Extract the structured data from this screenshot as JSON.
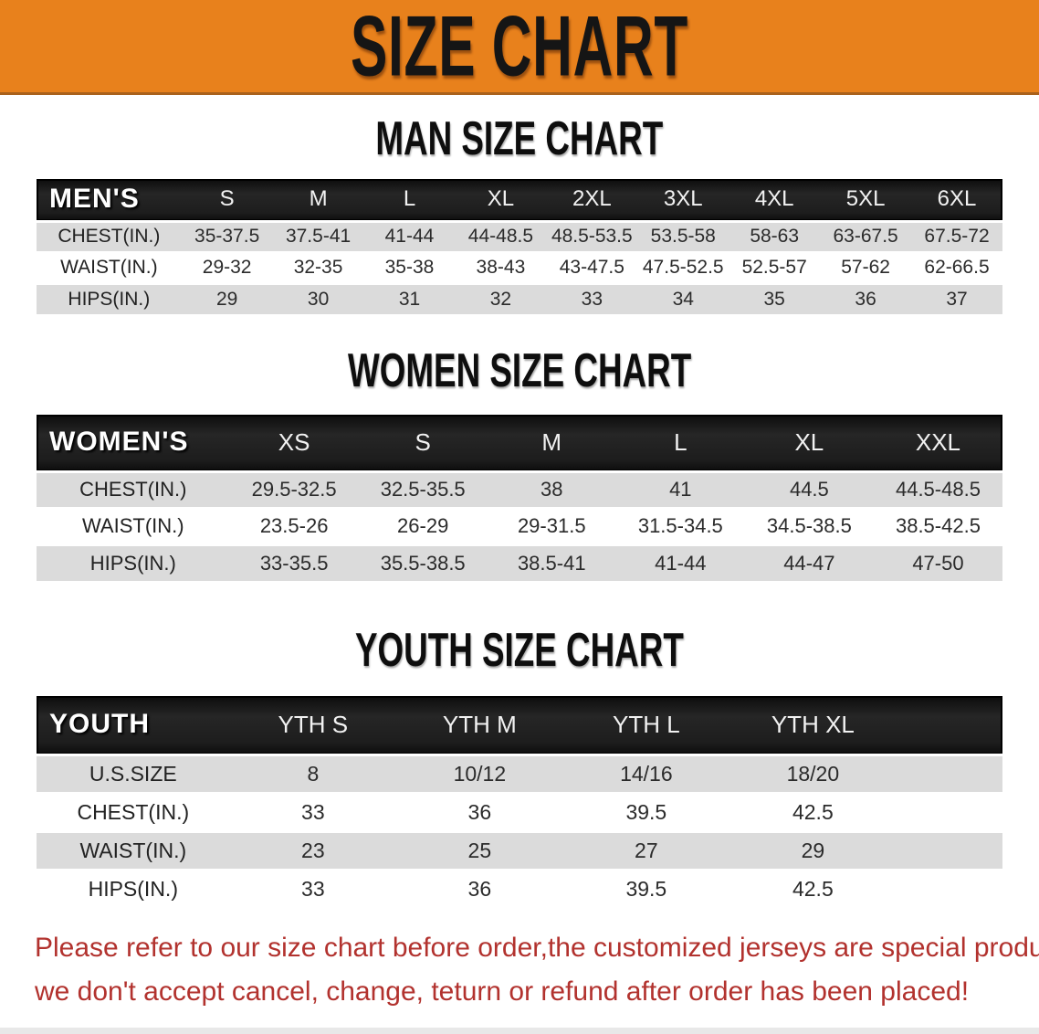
{
  "banner": {
    "title": "SIZE CHART"
  },
  "colors": {
    "banner_bg": "#E8811C",
    "banner_edge": "#A9611B",
    "header_bg": "#191919",
    "row_alt": "#DBDBDB",
    "footer_text": "#B2322E"
  },
  "sections": [
    {
      "kind": "men",
      "heading": "MAN SIZE CHART",
      "header_label": "MEN'S",
      "columns": [
        "S",
        "M",
        "L",
        "XL",
        "2XL",
        "3XL",
        "4XL",
        "5XL",
        "6XL"
      ],
      "rows": [
        {
          "label": "CHEST(IN.)",
          "values": [
            "35-37.5",
            "37.5-41",
            "41-44",
            "44-48.5",
            "48.5-53.5",
            "53.5-58",
            "58-63",
            "63-67.5",
            "67.5-72"
          ]
        },
        {
          "label": "WAIST(IN.)",
          "values": [
            "29-32",
            "32-35",
            "35-38",
            "38-43",
            "43-47.5",
            "47.5-52.5",
            "52.5-57",
            "57-62",
            "62-66.5"
          ]
        },
        {
          "label": "HIPS(IN.)",
          "values": [
            "29",
            "30",
            "31",
            "32",
            "33",
            "34",
            "35",
            "36",
            "37"
          ]
        }
      ]
    },
    {
      "kind": "women",
      "heading": "WOMEN SIZE CHART",
      "header_label": "WOMEN'S",
      "columns": [
        "XS",
        "S",
        "M",
        "L",
        "XL",
        "XXL"
      ],
      "rows": [
        {
          "label": "CHEST(IN.)",
          "values": [
            "29.5-32.5",
            "32.5-35.5",
            "38",
            "41",
            "44.5",
            "44.5-48.5"
          ]
        },
        {
          "label": "WAIST(IN.)",
          "values": [
            "23.5-26",
            "26-29",
            "29-31.5",
            "31.5-34.5",
            "34.5-38.5",
            "38.5-42.5"
          ]
        },
        {
          "label": "HIPS(IN.)",
          "values": [
            "33-35.5",
            "35.5-38.5",
            "38.5-41",
            "41-44",
            "44-47",
            "47-50"
          ]
        }
      ]
    },
    {
      "kind": "youth",
      "heading": "YOUTH SIZE CHART",
      "header_label": "YOUTH",
      "trailing_spacer": true,
      "columns": [
        "YTH S",
        "YTH M",
        "YTH L",
        "YTH XL"
      ],
      "rows": [
        {
          "label": "U.S.SIZE",
          "values": [
            "8",
            "10/12",
            "14/16",
            "18/20"
          ]
        },
        {
          "label": "CHEST(IN.)",
          "values": [
            "33",
            "36",
            "39.5",
            "42.5"
          ]
        },
        {
          "label": "WAIST(IN.)",
          "values": [
            "23",
            "25",
            "27",
            "29"
          ]
        },
        {
          "label": "HIPS(IN.)",
          "values": [
            "33",
            "36",
            "39.5",
            "42.5"
          ]
        }
      ]
    }
  ],
  "footer": {
    "line1": "Please refer to our size chart before order,the customized jerseys are special products,",
    "line2": "we don't accept cancel, change, teturn or refund after order has been placed!"
  }
}
